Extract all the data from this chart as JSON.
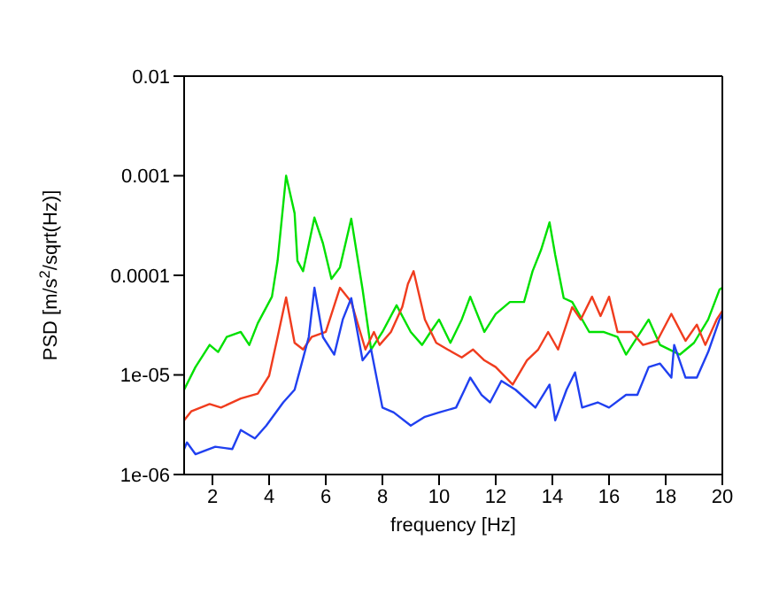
{
  "chart_data": {
    "type": "line",
    "xlabel": "frequency [Hz]",
    "ylabel": "PSD [m/s$^{2}$/sqrt(Hz)]",
    "log": "y",
    "xlim": [
      1,
      20
    ],
    "xticks": [
      2,
      4,
      6,
      8,
      10,
      12,
      14,
      16,
      18,
      20
    ],
    "ylim": [
      1e-06,
      0.01
    ],
    "yticks": [
      {
        "value": 1e-06,
        "label": "1e-06"
      },
      {
        "value": 1e-05,
        "label": "1e-05"
      },
      {
        "value": 0.0001,
        "label": "0.0001"
      },
      {
        "value": 0.001,
        "label": "0.001"
      },
      {
        "value": 0.01,
        "label": "0.01"
      }
    ],
    "series": [
      {
        "color": "#00e000",
        "x": [
          1.0,
          1.4,
          1.9,
          2.2,
          2.5,
          3.0,
          3.3,
          3.6,
          4.1,
          4.3,
          4.6,
          4.9,
          5.0,
          5.2,
          5.6,
          5.9,
          6.2,
          6.5,
          6.9,
          7.3,
          7.6,
          8.0,
          8.5,
          9.0,
          9.4,
          9.7,
          10.0,
          10.4,
          10.8,
          11.1,
          11.6,
          12.0,
          12.5,
          13.0,
          13.3,
          13.6,
          13.9,
          14.1,
          14.4,
          14.7,
          15.3,
          15.8,
          16.3,
          16.6,
          17.4,
          17.8,
          18.5,
          19.0,
          19.5,
          19.9,
          20
        ],
        "values": [
          7.1e-06,
          1.2e-05,
          2e-05,
          1.7e-05,
          2.4e-05,
          2.7e-05,
          2e-05,
          3.3e-05,
          6.1e-05,
          0.00014,
          0.001,
          0.00042,
          0.00014,
          0.00011,
          0.00038,
          0.00021,
          9.2e-05,
          0.00012,
          0.00037,
          7.2e-05,
          1.8e-05,
          2.7e-05,
          5e-05,
          2.7e-05,
          2e-05,
          2.7e-05,
          3.6e-05,
          2.1e-05,
          3.6e-05,
          6.1e-05,
          2.7e-05,
          4.1e-05,
          5.4e-05,
          5.4e-05,
          0.00011,
          0.00018,
          0.00034,
          0.00016,
          5.9e-05,
          5.4e-05,
          2.7e-05,
          2.7e-05,
          2.4e-05,
          1.6e-05,
          3.6e-05,
          2e-05,
          1.6e-05,
          2.1e-05,
          3.6e-05,
          7.2e-05,
          7.5e-05
        ]
      },
      {
        "color": "#f03c1e",
        "x": [
          1.0,
          1.25,
          1.9,
          2.3,
          3.0,
          3.6,
          4.0,
          4.3,
          4.6,
          4.9,
          5.2,
          5.5,
          6.0,
          6.5,
          6.9,
          7.4,
          7.7,
          7.9,
          8.3,
          8.7,
          8.9,
          9.1,
          9.5,
          9.9,
          10.3,
          10.8,
          11.2,
          11.6,
          12.0,
          12.6,
          13.1,
          13.5,
          13.85,
          14.2,
          14.7,
          15.0,
          15.4,
          15.7,
          16.0,
          16.3,
          16.8,
          17.2,
          17.7,
          18.2,
          18.7,
          19.1,
          19.4,
          19.8,
          20
        ],
        "values": [
          3.5e-06,
          4.3e-06,
          5.1e-06,
          4.7e-06,
          5.8e-06,
          6.5e-06,
          9.8e-06,
          2.4e-05,
          6e-05,
          2.1e-05,
          1.8e-05,
          2.4e-05,
          2.7e-05,
          7.5e-05,
          5.4e-05,
          1.8e-05,
          2.7e-05,
          2e-05,
          2.7e-05,
          4.8e-05,
          8.2e-05,
          0.00011,
          3.6e-05,
          2.1e-05,
          1.8e-05,
          1.5e-05,
          1.8e-05,
          1.4e-05,
          1.2e-05,
          8e-06,
          1.4e-05,
          1.8e-05,
          2.7e-05,
          1.8e-05,
          4.8e-05,
          3.6e-05,
          6.1e-05,
          3.9e-05,
          6.1e-05,
          2.7e-05,
          2.7e-05,
          2e-05,
          2.2e-05,
          4.1e-05,
          2.2e-05,
          3.2e-05,
          2e-05,
          3.6e-05,
          4.4e-05
        ]
      },
      {
        "color": "#2040f0",
        "x": [
          1.0,
          1.1,
          1.4,
          2.1,
          2.7,
          3.0,
          3.5,
          3.9,
          4.5,
          4.9,
          5.1,
          5.4,
          5.6,
          5.9,
          6.3,
          6.6,
          6.9,
          7.3,
          7.6,
          8.0,
          8.4,
          9.0,
          9.5,
          10.0,
          10.6,
          10.9,
          11.1,
          11.5,
          11.8,
          12.2,
          12.7,
          13.4,
          13.9,
          14.1,
          14.5,
          14.8,
          15.05,
          15.6,
          16.0,
          16.6,
          17.0,
          17.4,
          17.8,
          18.2,
          18.3,
          18.7,
          19.1,
          19.5,
          19.9,
          20
        ],
        "values": [
          1.8e-06,
          2.1e-06,
          1.6e-06,
          1.9e-06,
          1.8e-06,
          2.8e-06,
          2.3e-06,
          3.1e-06,
          5.3e-06,
          7.1e-06,
          1.15e-05,
          2.4e-05,
          7.5e-05,
          2.4e-05,
          1.6e-05,
          3.6e-05,
          5.9e-05,
          1.4e-05,
          1.8e-05,
          4.7e-06,
          4.2e-06,
          3.1e-06,
          3.8e-06,
          4.2e-06,
          4.7e-06,
          7.1e-06,
          9.4e-06,
          6.3e-06,
          5.3e-06,
          8.7e-06,
          7.1e-06,
          4.7e-06,
          8e-06,
          3.5e-06,
          7.1e-06,
          1.06e-05,
          4.7e-06,
          5.3e-06,
          4.7e-06,
          6.3e-06,
          6.3e-06,
          1.2e-05,
          1.3e-05,
          9.4e-06,
          2e-05,
          9.4e-06,
          9.4e-06,
          1.7e-05,
          3.6e-05,
          4.1e-05
        ]
      }
    ]
  }
}
